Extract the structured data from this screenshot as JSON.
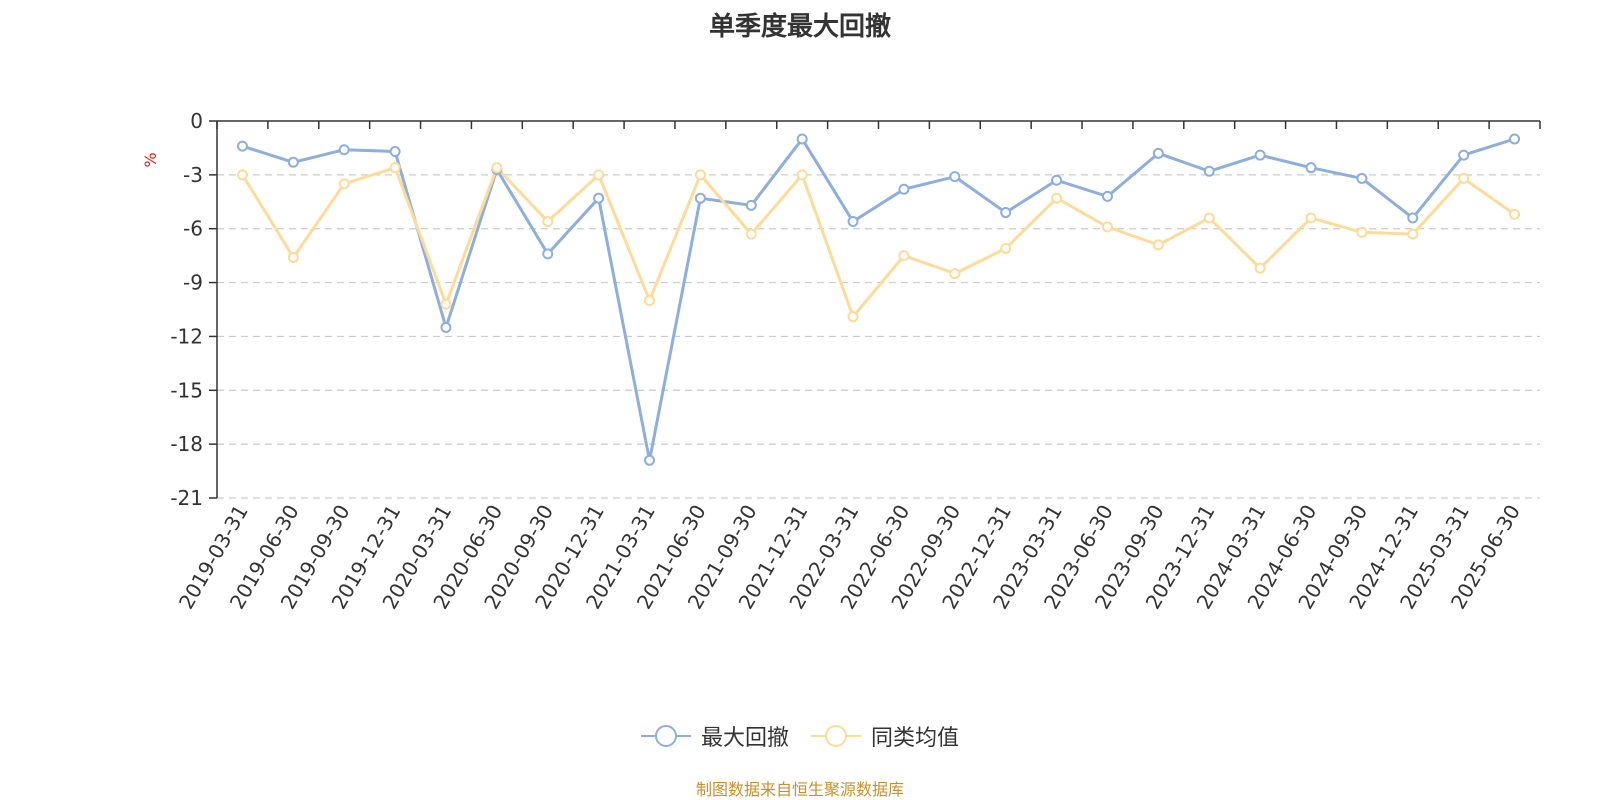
{
  "chart_data": {
    "type": "line",
    "title": "单季度最大回撤",
    "ylabel": "%",
    "xlabel": "",
    "ylim": [
      -21,
      0
    ],
    "yticks": [
      0,
      -3,
      -6,
      -9,
      -12,
      -15,
      -18,
      -21
    ],
    "grid": true,
    "legend_position": "bottom",
    "categories": [
      "2019-03-31",
      "2019-06-30",
      "2019-09-30",
      "2019-12-31",
      "2020-03-31",
      "2020-06-30",
      "2020-09-30",
      "2020-12-31",
      "2021-03-31",
      "2021-06-30",
      "2021-09-30",
      "2021-12-31",
      "2022-03-31",
      "2022-06-30",
      "2022-09-30",
      "2022-12-31",
      "2023-03-31",
      "2023-06-30",
      "2023-09-30",
      "2023-12-31",
      "2024-03-31",
      "2024-06-30",
      "2024-09-30",
      "2024-12-31",
      "2025-03-31",
      "2025-06-30"
    ],
    "series": [
      {
        "name": "最大回撤",
        "color": "#8eaedb",
        "values": [
          -1.4,
          -2.3,
          -1.6,
          -1.7,
          -11.5,
          -2.7,
          -7.4,
          -4.3,
          -18.9,
          -4.3,
          -4.7,
          -1.0,
          -5.6,
          -3.8,
          -3.1,
          -5.1,
          -3.3,
          -4.2,
          -1.8,
          -2.8,
          -1.9,
          -2.6,
          -3.2,
          -5.4,
          -1.9,
          -1.0
        ]
      },
      {
        "name": "同类均值",
        "color": "#fddb9a",
        "values": [
          -3.0,
          -7.6,
          -3.5,
          -2.6,
          -10.2,
          -2.6,
          -5.6,
          -3.0,
          -10.0,
          -3.0,
          -6.3,
          -3.0,
          -10.9,
          -7.5,
          -8.5,
          -7.1,
          -4.3,
          -5.9,
          -6.9,
          -5.4,
          -8.2,
          -5.4,
          -6.2,
          -6.3,
          -3.2,
          -5.2
        ]
      }
    ]
  },
  "source_text": "制图数据来自恒生聚源数据库"
}
